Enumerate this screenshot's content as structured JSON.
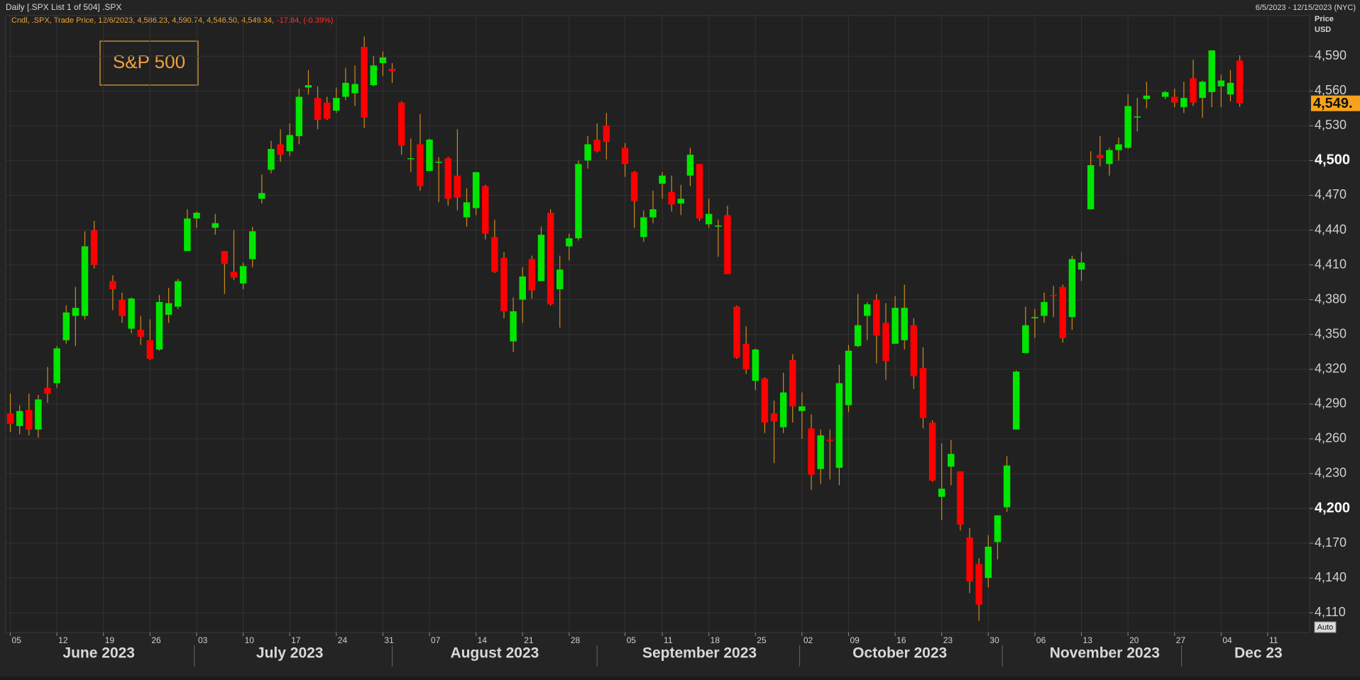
{
  "chart_data": {
    "type": "candlestick",
    "header_title": "Daily [.SPX List 1 of 504] .SPX",
    "header_range": "6/5/2023 - 12/15/2023 (NYC)",
    "legend_text": "Cndl, .SPX, Trade Price, 12/6/2023, 4,586.23, 4,590.74, 4,546.50, 4,549.34,",
    "legend_change": "-17.84, (-0.39%)",
    "title": "S&P 500",
    "y_axis_label": [
      "Price",
      "USD"
    ],
    "auto_button": "Auto",
    "up_color": "#00e600",
    "down_color": "#ff0000",
    "wick_color": "#d08a1c",
    "grid": true,
    "xlim": [
      -0.5,
      139.5
    ],
    "ylim": [
      4093,
      4625
    ],
    "yticks": [
      {
        "value": 4110,
        "label": "4,110"
      },
      {
        "value": 4140,
        "label": "4,140"
      },
      {
        "value": 4170,
        "label": "4,170"
      },
      {
        "value": 4200,
        "label": "4,200"
      },
      {
        "value": 4230,
        "label": "4,230"
      },
      {
        "value": 4260,
        "label": "4,260"
      },
      {
        "value": 4290,
        "label": "4,290"
      },
      {
        "value": 4320,
        "label": "4,320"
      },
      {
        "value": 4350,
        "label": "4,350"
      },
      {
        "value": 4380,
        "label": "4,380"
      },
      {
        "value": 4410,
        "label": "4,410"
      },
      {
        "value": 4440,
        "label": "4,440"
      },
      {
        "value": 4470,
        "label": "4,470"
      },
      {
        "value": 4500,
        "label": "4,500"
      },
      {
        "value": 4530,
        "label": "4,530"
      },
      {
        "value": 4560,
        "label": "4,560"
      },
      {
        "value": 4590,
        "label": "4,590"
      }
    ],
    "xticks": [
      {
        "value": 0,
        "label": "05"
      },
      {
        "value": 5,
        "label": "12"
      },
      {
        "value": 10,
        "label": "19"
      },
      {
        "value": 15,
        "label": "26"
      },
      {
        "value": 20,
        "label": "03"
      },
      {
        "value": 25,
        "label": "10"
      },
      {
        "value": 30,
        "label": "17"
      },
      {
        "value": 35,
        "label": "24"
      },
      {
        "value": 40,
        "label": "31"
      },
      {
        "value": 45,
        "label": "07"
      },
      {
        "value": 50,
        "label": "14"
      },
      {
        "value": 55,
        "label": "21"
      },
      {
        "value": 60,
        "label": "28"
      },
      {
        "value": 66,
        "label": "05"
      },
      {
        "value": 70,
        "label": "11"
      },
      {
        "value": 75,
        "label": "18"
      },
      {
        "value": 80,
        "label": "25"
      },
      {
        "value": 85,
        "label": "02"
      },
      {
        "value": 90,
        "label": "09"
      },
      {
        "value": 95,
        "label": "16"
      },
      {
        "value": 100,
        "label": "23"
      },
      {
        "value": 105,
        "label": "30"
      },
      {
        "value": 110,
        "label": "06"
      },
      {
        "value": 115,
        "label": "13"
      },
      {
        "value": 120,
        "label": "20"
      },
      {
        "value": 125,
        "label": "27"
      },
      {
        "value": 130,
        "label": "04"
      },
      {
        "value": 135,
        "label": "11"
      }
    ],
    "month_labels": [
      {
        "value": 9.5,
        "label": "June 2023"
      },
      {
        "value": 30,
        "label": "July 2023"
      },
      {
        "value": 52,
        "label": "August 2023"
      },
      {
        "value": 74,
        "label": "September 2023"
      },
      {
        "value": 95.5,
        "label": "October 2023"
      },
      {
        "value": 117.5,
        "label": "November 2023"
      },
      {
        "value": 134,
        "label": "Dec 23"
      }
    ],
    "last_label": "4,549.",
    "ohlc": [
      [
        4282,
        4299,
        4266,
        4273
      ],
      [
        4271,
        4289,
        4264,
        4284
      ],
      [
        4285,
        4299,
        4263,
        4268
      ],
      [
        4268,
        4298,
        4261,
        4294
      ],
      [
        4304,
        4322,
        4291,
        4299
      ],
      [
        4308,
        4340,
        4304,
        4338
      ],
      [
        4345,
        4375,
        4342,
        4369
      ],
      [
        4366,
        4391,
        4340,
        4373
      ],
      [
        4366,
        4439,
        4363,
        4426
      ],
      [
        4440,
        4448,
        4407,
        4410
      ],
      null,
      [
        4396,
        4401,
        4371,
        4389
      ],
      [
        4380,
        4386,
        4360,
        4366
      ],
      [
        4355,
        4382,
        4351,
        4381
      ],
      [
        4354,
        4366,
        4341,
        4348
      ],
      [
        4345,
        4363,
        4328,
        4329
      ],
      [
        4337,
        4384,
        4336,
        4378
      ],
      [
        4367,
        4390,
        4360,
        4377
      ],
      [
        4374,
        4398,
        4372,
        4396
      ],
      [
        4422,
        4458,
        4422,
        4450
      ],
      [
        4450,
        4456,
        4442,
        4455
      ],
      null,
      [
        4442,
        4454,
        4436,
        4446
      ],
      [
        4422,
        4422,
        4385,
        4411
      ],
      [
        4404,
        4440,
        4397,
        4399
      ],
      [
        4394,
        4412,
        4389,
        4409
      ],
      [
        4415,
        4443,
        4408,
        4439
      ],
      [
        4467,
        4488,
        4463,
        4472
      ],
      [
        4492,
        4517,
        4489,
        4510
      ],
      [
        4514,
        4527,
        4499,
        4505
      ],
      [
        4508,
        4532,
        4504,
        4522
      ],
      [
        4521,
        4562,
        4514,
        4555
      ],
      [
        4563,
        4578,
        4557,
        4565
      ],
      [
        4554,
        4564,
        4527,
        4535
      ],
      [
        4550,
        4555,
        4535,
        4536
      ],
      [
        4543,
        4563,
        4541,
        4554
      ],
      [
        4555,
        4580,
        4552,
        4567
      ],
      [
        4558,
        4582,
        4547,
        4566
      ],
      [
        4598,
        4607,
        4528,
        4537
      ],
      [
        4565,
        4590,
        4564,
        4582
      ],
      [
        4584,
        4594,
        4573,
        4589
      ],
      [
        4579,
        4584,
        4567,
        4577
      ],
      [
        4550,
        4551,
        4505,
        4513
      ],
      [
        4502,
        4519,
        4490,
        4502
      ],
      [
        4514,
        4540,
        4474,
        4478
      ],
      [
        4491,
        4519,
        4491,
        4518
      ],
      [
        4499,
        4503,
        4464,
        4499
      ],
      [
        4502,
        4503,
        4461,
        4467
      ],
      [
        4487,
        4527,
        4457,
        4468
      ],
      [
        4451,
        4476,
        4443,
        4464
      ],
      [
        4459,
        4490,
        4453,
        4490
      ],
      [
        4478,
        4479,
        4432,
        4437
      ],
      [
        4434,
        4449,
        4403,
        4404
      ],
      [
        4416,
        4421,
        4364,
        4370
      ],
      [
        4344,
        4382,
        4335,
        4370
      ],
      [
        4380,
        4408,
        4360,
        4400
      ],
      [
        4415,
        4418,
        4381,
        4388
      ],
      [
        4396,
        4443,
        4396,
        4436
      ],
      [
        4455,
        4458,
        4375,
        4376
      ],
      [
        4389,
        4418,
        4356,
        4406
      ],
      [
        4426,
        4437,
        4414,
        4433
      ],
      [
        4433,
        4500,
        4431,
        4497
      ],
      [
        4500,
        4521,
        4493,
        4514
      ],
      [
        4518,
        4532,
        4507,
        4508
      ],
      [
        4530,
        4541,
        4501,
        4516
      ],
      null,
      [
        4511,
        4515,
        4486,
        4497
      ],
      [
        4490,
        4491,
        4442,
        4465
      ],
      [
        4434,
        4457,
        4430,
        4451
      ],
      [
        4451,
        4474,
        4446,
        4458
      ],
      [
        4480,
        4490,
        4467,
        4487
      ],
      [
        4473,
        4487,
        4456,
        4462
      ],
      [
        4463,
        4479,
        4453,
        4467
      ],
      [
        4487,
        4511,
        4478,
        4505
      ],
      [
        4497,
        4497,
        4448,
        4450
      ],
      [
        4445,
        4467,
        4442,
        4454
      ],
      [
        4443,
        4449,
        4417,
        4444
      ],
      [
        4453,
        4461,
        4402,
        4402
      ],
      [
        4374,
        4375,
        4329,
        4330
      ],
      [
        4342,
        4357,
        4316,
        4320
      ],
      [
        4310,
        4338,
        4302,
        4337
      ],
      [
        4312,
        4313,
        4265,
        4274
      ],
      [
        4282,
        4293,
        4239,
        4275
      ],
      [
        4270,
        4317,
        4265,
        4300
      ],
      [
        4328,
        4333,
        4274,
        4288
      ],
      [
        4284,
        4300,
        4260,
        4288
      ],
      [
        4269,
        4281,
        4216,
        4229
      ],
      [
        4234,
        4268,
        4221,
        4263
      ],
      [
        4259,
        4268,
        4225,
        4258
      ],
      [
        4235,
        4324,
        4220,
        4308
      ],
      [
        4289,
        4341,
        4283,
        4336
      ],
      [
        4340,
        4385,
        4339,
        4358
      ],
      [
        4366,
        4378,
        4345,
        4376
      ],
      [
        4380,
        4385,
        4325,
        4349
      ],
      [
        4360,
        4377,
        4311,
        4327
      ],
      [
        4342,
        4383,
        4342,
        4373
      ],
      [
        4345,
        4393,
        4337,
        4373
      ],
      [
        4358,
        4364,
        4303,
        4314
      ],
      [
        4321,
        4339,
        4269,
        4278
      ],
      [
        4274,
        4276,
        4223,
        4224
      ],
      [
        4210,
        4256,
        4190,
        4217
      ],
      [
        4236,
        4259,
        4220,
        4247
      ],
      [
        4232,
        4232,
        4181,
        4186
      ],
      [
        4175,
        4183,
        4127,
        4137
      ],
      [
        4152,
        4157,
        4103,
        4117
      ],
      [
        4140,
        4177,
        4132,
        4167
      ],
      [
        4171,
        4194,
        4156,
        4194
      ],
      [
        4201,
        4245,
        4197,
        4237
      ],
      [
        4268,
        4319,
        4268,
        4318
      ],
      [
        4334,
        4374,
        4334,
        4358
      ],
      [
        4364,
        4372,
        4347,
        4365
      ],
      [
        4366,
        4386,
        4360,
        4378
      ],
      [
        4384,
        4392,
        4365,
        4383
      ],
      [
        4391,
        4393,
        4343,
        4347
      ],
      [
        4365,
        4418,
        4354,
        4415
      ],
      [
        4406,
        4421,
        4396,
        4412
      ],
      [
        4458,
        4508,
        4458,
        4496
      ],
      [
        4505,
        4521,
        4495,
        4502
      ],
      [
        4497,
        4511,
        4487,
        4509
      ],
      [
        4509,
        4520,
        4500,
        4514
      ],
      [
        4511,
        4557,
        4510,
        4547
      ],
      [
        4538,
        4554,
        4525,
        4538
      ],
      [
        4553,
        4568,
        4545,
        4556
      ],
      null,
      [
        4555,
        4560,
        4553,
        4559
      ],
      [
        4555,
        4562,
        4546,
        4550
      ],
      [
        4546,
        4568,
        4541,
        4554
      ],
      [
        4571,
        4587,
        4547,
        4550
      ],
      [
        4554,
        4569,
        4537,
        4568
      ],
      [
        4559,
        4595,
        4546,
        4595
      ],
      [
        4564,
        4574,
        4546,
        4569
      ],
      [
        4557,
        4578,
        4551,
        4567
      ],
      [
        4586.23,
        4590.74,
        4546.5,
        4549.34
      ],
      null,
      null,
      null,
      null,
      null,
      null,
      null
    ]
  }
}
